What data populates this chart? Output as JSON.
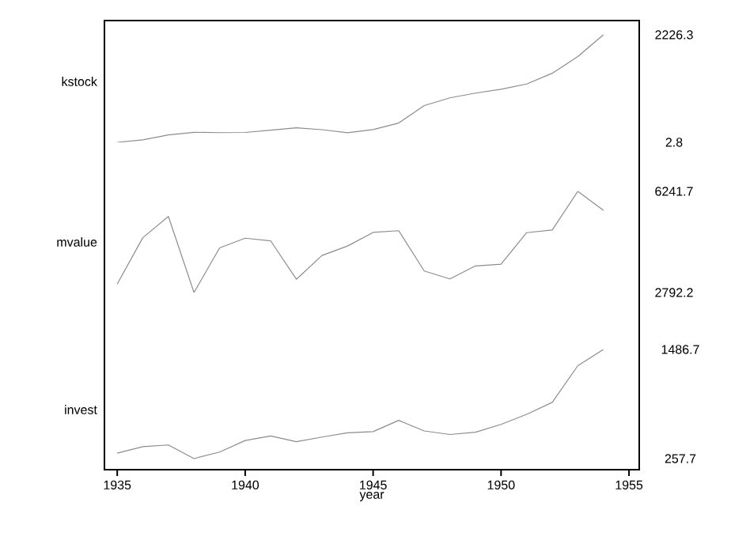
{
  "chart_data": [
    {
      "type": "line",
      "ylabel": "kstock",
      "x": [
        1935,
        1936,
        1937,
        1938,
        1939,
        1940,
        1941,
        1942,
        1943,
        1944,
        1945,
        1946,
        1947,
        1948,
        1949,
        1950,
        1951,
        1952,
        1953,
        1954
      ],
      "series": [
        {
          "color": "#8c8c8c",
          "values": [
            2.8,
            53,
            157,
            209,
            203,
            207,
            255,
            304,
            264,
            202,
            265,
            402,
            762,
            922,
            1020,
            1099,
            1208,
            1431,
            1777,
            2226.3
          ]
        }
      ],
      "xlim": [
        1934.5,
        1955.4
      ],
      "ylim": [
        2.8,
        2521
      ],
      "yticks": [
        2.8,
        2226.3
      ],
      "tick_labels": "y"
    },
    {
      "type": "line",
      "ylabel": "mvalue",
      "x": [
        1935,
        1936,
        1937,
        1938,
        1939,
        1940,
        1941,
        1942,
        1943,
        1944,
        1945,
        1946,
        1947,
        1948,
        1949,
        1950,
        1951,
        1952,
        1953,
        1954
      ],
      "series": [
        {
          "color": "#8c8c8c",
          "values": [
            3079,
            4662,
            5387,
            2792.2,
            4313,
            4644,
            4551,
            3244,
            4054,
            4379,
            4841,
            4901,
            3527,
            3255,
            3700,
            3756,
            4833,
            4925,
            6241.7,
            5594
          ]
        }
      ],
      "xlim": [
        1934.5,
        1955.4
      ],
      "ylim": [
        2792.2,
        6241.7
      ],
      "yticks": [
        2792.2,
        6241.7
      ],
      "tick_labels": "y"
    },
    {
      "type": "line",
      "ylabel": "invest",
      "xlabel": "year",
      "x": [
        1935,
        1936,
        1937,
        1938,
        1939,
        1940,
        1941,
        1942,
        1943,
        1944,
        1945,
        1946,
        1947,
        1948,
        1949,
        1950,
        1951,
        1952,
        1953,
        1954
      ],
      "series": [
        {
          "color": "#8c8c8c",
          "values": [
            318,
            392,
            411,
            257.7,
            331,
            461,
            512,
            448,
            500,
            548,
            561,
            688,
            569,
            529,
            555,
            643,
            756,
            891,
            1304,
            1486.7
          ]
        }
      ],
      "xlim": [
        1934.5,
        1955.4
      ],
      "ylim": [
        133,
        1486.7
      ],
      "xticks": [
        1935,
        1940,
        1945,
        1950,
        1955
      ],
      "yticks": [
        257.7,
        1486.7
      ]
    }
  ]
}
